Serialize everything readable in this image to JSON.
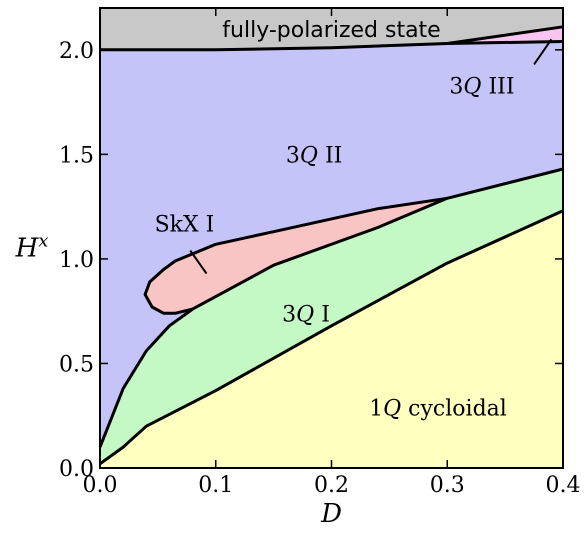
{
  "chart_data": {
    "type": "area",
    "xlabel": "D",
    "ylabel": "H",
    "ylabel_superscript": "x",
    "xlim": [
      0.0,
      0.4
    ],
    "ylim": [
      0.0,
      2.2
    ],
    "xticks": [
      "0.0",
      "0.1",
      "0.2",
      "0.3",
      "0.4"
    ],
    "yticks": [
      "0.0",
      "0.5",
      "1.0",
      "1.5",
      "2.0"
    ],
    "grid": false,
    "regions": [
      {
        "name": "1Q cycloidal",
        "label_parts": [
          "1",
          "Q",
          " cycloidal"
        ],
        "color": "#ffffc0",
        "boundary": [
          [
            0.0,
            0.0
          ],
          [
            0.0,
            0.02
          ],
          [
            0.02,
            0.1
          ],
          [
            0.04,
            0.2
          ],
          [
            0.1,
            0.37
          ],
          [
            0.2,
            0.68
          ],
          [
            0.3,
            0.98
          ],
          [
            0.4,
            1.23
          ],
          [
            0.4,
            0.0
          ]
        ]
      },
      {
        "name": "3Q I",
        "label_parts": [
          "3",
          "Q",
          " I"
        ],
        "color": "#c4f8c4",
        "boundary": [
          [
            0.0,
            0.02
          ],
          [
            0.0,
            0.1
          ],
          [
            0.02,
            0.38
          ],
          [
            0.04,
            0.56
          ],
          [
            0.06,
            0.68
          ],
          [
            0.08,
            0.76
          ],
          [
            0.15,
            0.97
          ],
          [
            0.24,
            1.15
          ],
          [
            0.3,
            1.29
          ],
          [
            0.4,
            1.43
          ],
          [
            0.4,
            1.23
          ],
          [
            0.3,
            0.98
          ],
          [
            0.2,
            0.68
          ],
          [
            0.1,
            0.37
          ],
          [
            0.04,
            0.2
          ],
          [
            0.02,
            0.1
          ]
        ]
      },
      {
        "name": "SkX I",
        "label_parts": [
          "SkX I"
        ],
        "color": "#f8c4c4",
        "boundary": [
          [
            0.065,
            0.74
          ],
          [
            0.055,
            0.74
          ],
          [
            0.045,
            0.77
          ],
          [
            0.039,
            0.83
          ],
          [
            0.043,
            0.89
          ],
          [
            0.055,
            0.95
          ],
          [
            0.065,
            0.99
          ],
          [
            0.1,
            1.07
          ],
          [
            0.15,
            1.13
          ],
          [
            0.24,
            1.24
          ],
          [
            0.3,
            1.29
          ],
          [
            0.24,
            1.15
          ],
          [
            0.15,
            0.97
          ],
          [
            0.08,
            0.76
          ]
        ]
      },
      {
        "name": "3Q II",
        "label_parts": [
          "3",
          "Q",
          " II"
        ],
        "color": "#c4c4f8",
        "boundary": [
          [
            0.0,
            0.1
          ],
          [
            0.0,
            2.0
          ],
          [
            0.1,
            2.0
          ],
          [
            0.2,
            2.01
          ],
          [
            0.3,
            2.03
          ],
          [
            0.4,
            2.04
          ],
          [
            0.4,
            1.43
          ],
          [
            0.3,
            1.29
          ],
          [
            0.24,
            1.24
          ],
          [
            0.15,
            1.13
          ],
          [
            0.1,
            1.07
          ],
          [
            0.065,
            0.99
          ],
          [
            0.055,
            0.95
          ],
          [
            0.043,
            0.89
          ],
          [
            0.039,
            0.83
          ],
          [
            0.045,
            0.77
          ],
          [
            0.055,
            0.74
          ],
          [
            0.065,
            0.74
          ],
          [
            0.08,
            0.76
          ],
          [
            0.06,
            0.68
          ],
          [
            0.04,
            0.56
          ],
          [
            0.02,
            0.38
          ]
        ]
      },
      {
        "name": "3Q III",
        "label_parts": [
          "3",
          "Q",
          " III"
        ],
        "color": "#f8c4f0",
        "boundary": [
          [
            0.3,
            2.03
          ],
          [
            0.4,
            2.04
          ],
          [
            0.4,
            2.11
          ]
        ]
      },
      {
        "name": "fully-polarized state",
        "label_parts": [
          "fully-polarized state"
        ],
        "color": "#c8c8c8",
        "boundary": [
          [
            0.0,
            2.0
          ],
          [
            0.1,
            2.0
          ],
          [
            0.2,
            2.01
          ],
          [
            0.3,
            2.03
          ],
          [
            0.4,
            2.11
          ],
          [
            0.4,
            2.2
          ],
          [
            0.0,
            2.2
          ]
        ]
      }
    ],
    "boundary_lines": [
      [
        [
          0.0,
          0.02
        ],
        [
          0.02,
          0.1
        ],
        [
          0.04,
          0.2
        ],
        [
          0.1,
          0.37
        ],
        [
          0.2,
          0.68
        ],
        [
          0.3,
          0.98
        ],
        [
          0.4,
          1.23
        ]
      ],
      [
        [
          0.0,
          0.1
        ],
        [
          0.02,
          0.38
        ],
        [
          0.04,
          0.56
        ],
        [
          0.06,
          0.68
        ],
        [
          0.08,
          0.76
        ],
        [
          0.15,
          0.97
        ],
        [
          0.24,
          1.15
        ],
        [
          0.3,
          1.29
        ],
        [
          0.4,
          1.43
        ]
      ],
      [
        [
          0.3,
          1.29
        ],
        [
          0.24,
          1.24
        ],
        [
          0.15,
          1.13
        ],
        [
          0.1,
          1.07
        ],
        [
          0.065,
          0.99
        ],
        [
          0.055,
          0.95
        ],
        [
          0.043,
          0.89
        ],
        [
          0.039,
          0.83
        ],
        [
          0.045,
          0.77
        ],
        [
          0.055,
          0.74
        ],
        [
          0.065,
          0.74
        ],
        [
          0.08,
          0.76
        ]
      ],
      [
        [
          0.0,
          2.0
        ],
        [
          0.1,
          2.0
        ],
        [
          0.2,
          2.01
        ],
        [
          0.3,
          2.03
        ],
        [
          0.4,
          2.04
        ]
      ],
      [
        [
          0.3,
          2.03
        ],
        [
          0.4,
          2.11
        ]
      ]
    ],
    "label_positions": {
      "fully-polarized state": [
        0.2,
        2.1
      ],
      "3Q III": [
        0.33,
        1.83
      ],
      "3Q II": [
        0.185,
        1.5
      ],
      "SkX I": [
        0.073,
        1.17
      ],
      "3Q I": [
        0.178,
        0.74
      ],
      "1Q cycloidal": [
        0.292,
        0.29
      ]
    },
    "pointers": [
      {
        "for": "3Q III",
        "from": [
          0.375,
          1.93
        ],
        "to": [
          0.39,
          2.05
        ]
      },
      {
        "for": "SkX I",
        "from": [
          0.092,
          0.93
        ],
        "to": [
          0.078,
          1.04
        ]
      }
    ]
  }
}
